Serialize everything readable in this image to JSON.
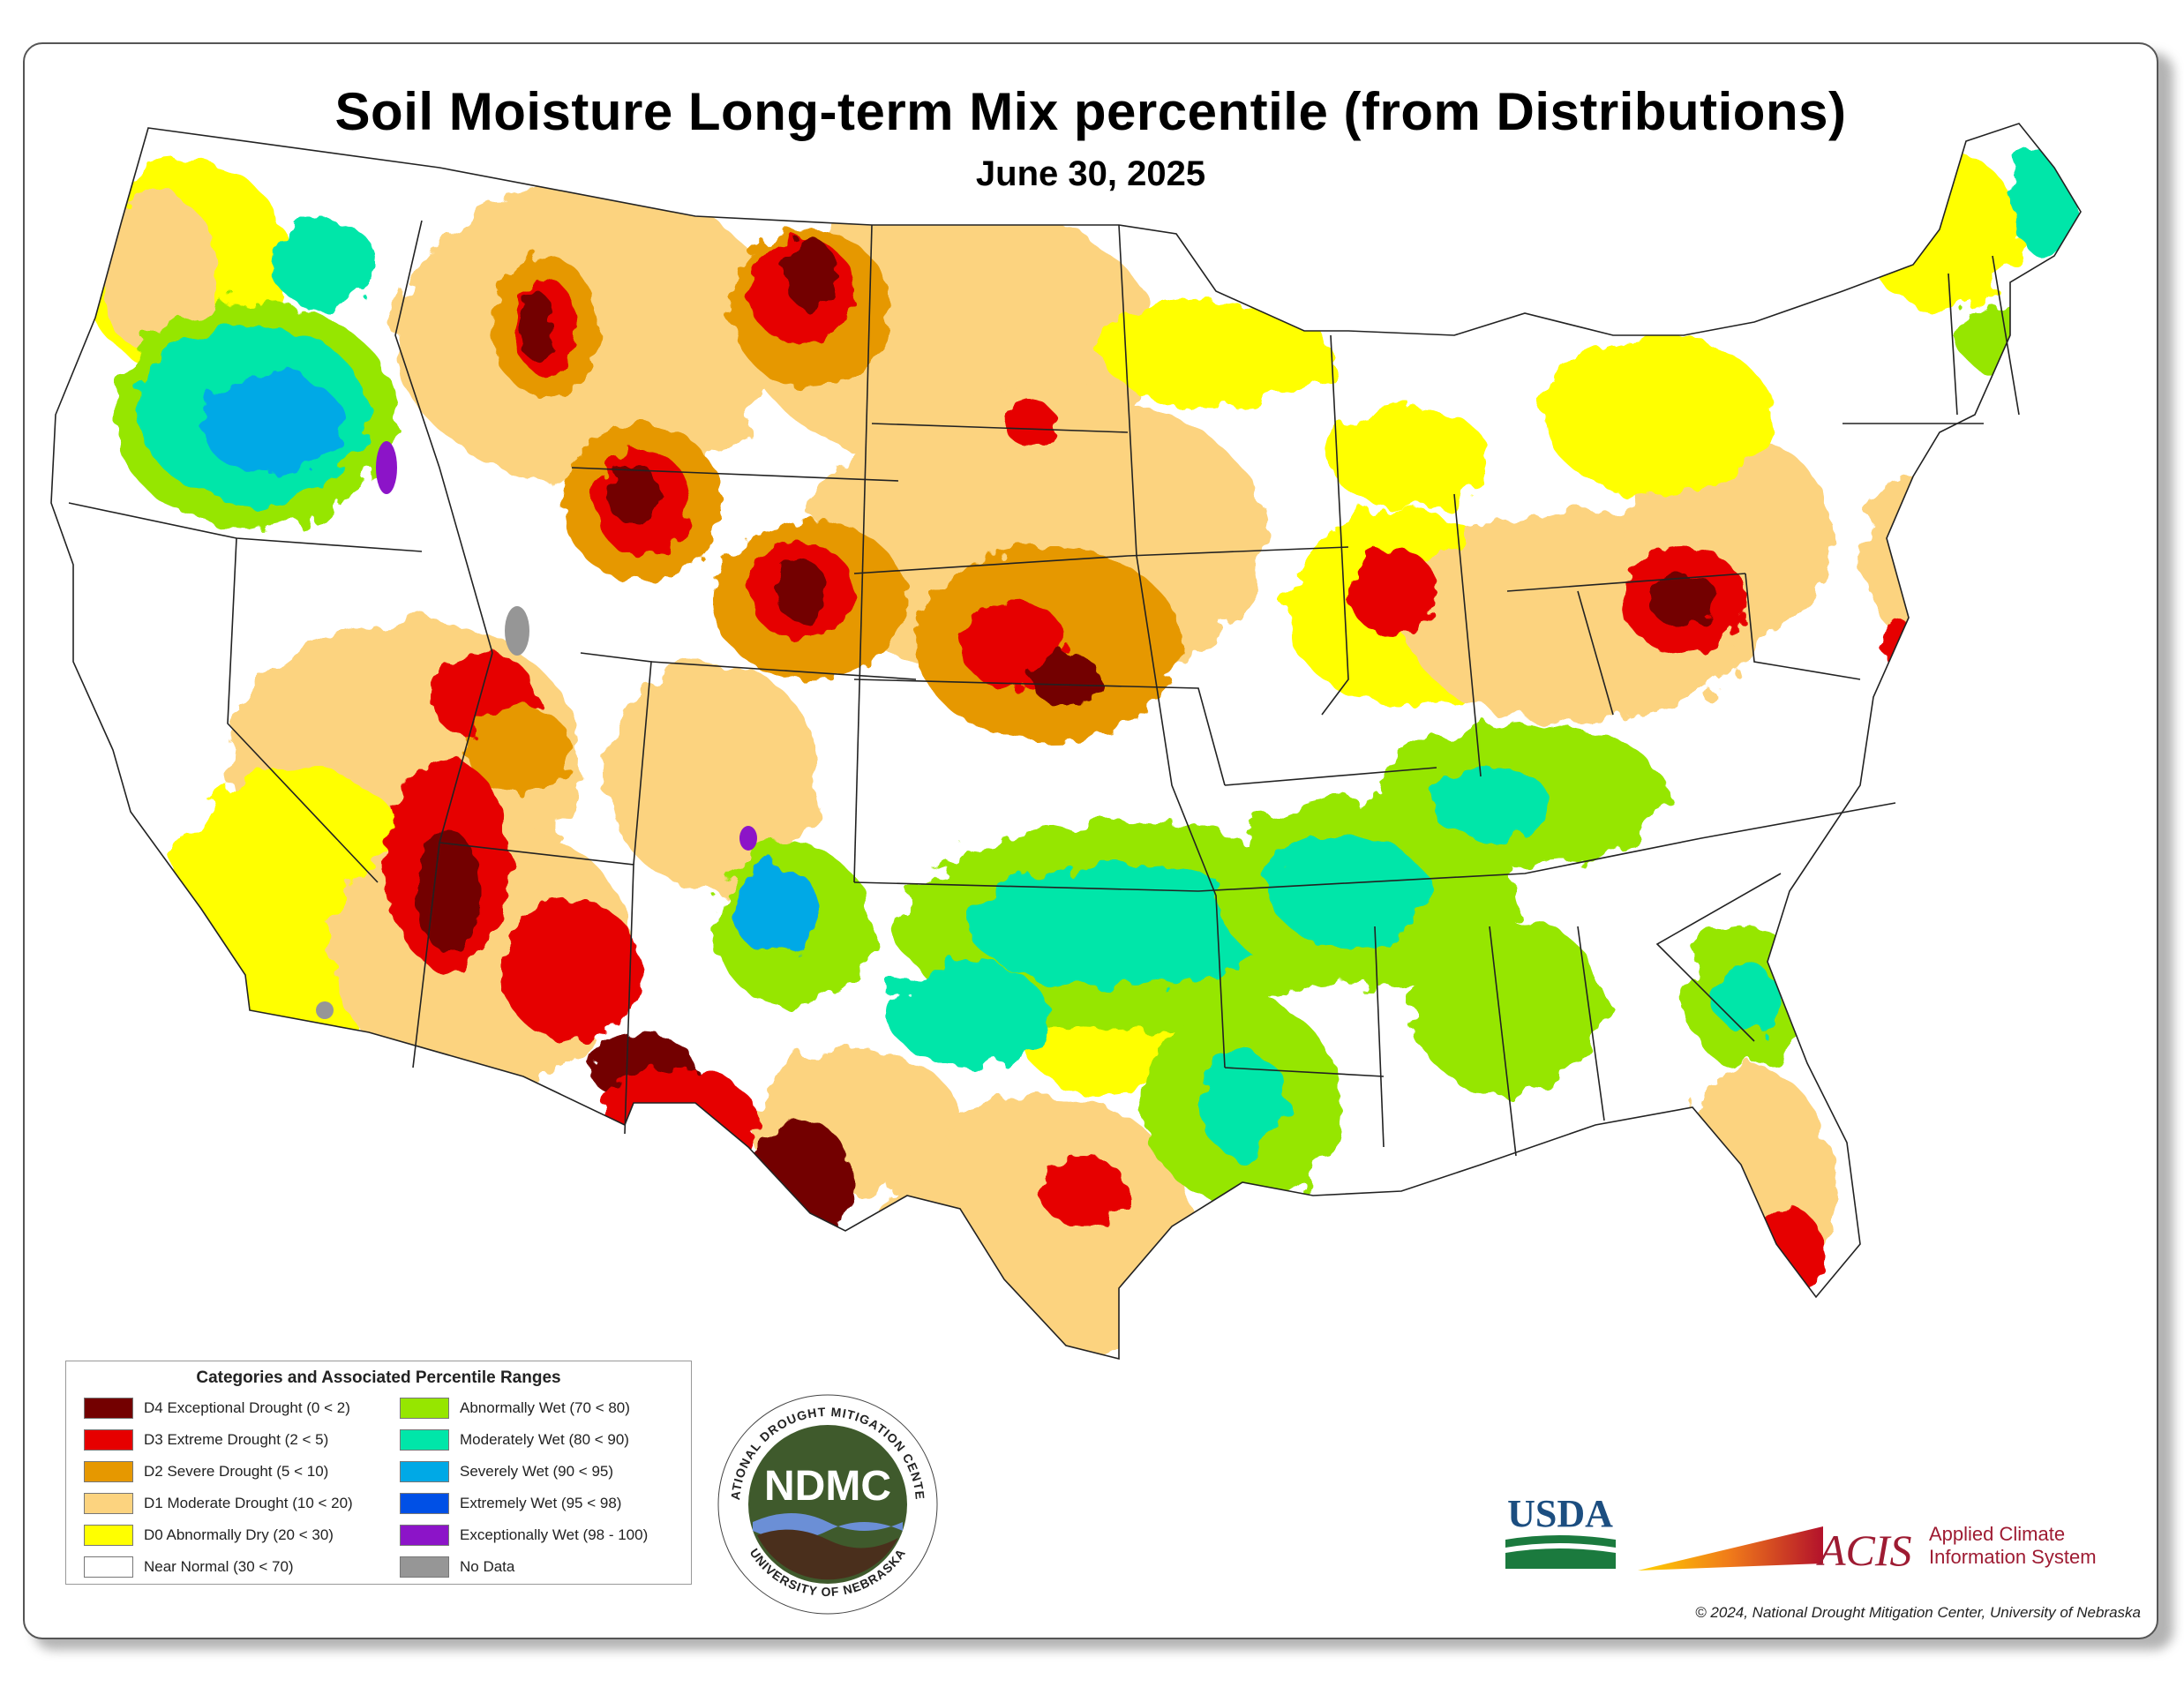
{
  "title": "Soil Moisture Long-term Mix percentile (from Distributions)",
  "date": "June 30, 2025",
  "legend": {
    "title": "Categories and Associated Percentile Ranges",
    "items": [
      {
        "label": "D4 Exceptional Drought (0 < 2)",
        "color": "#730000"
      },
      {
        "label": "D3 Extreme Drought (2 < 5)",
        "color": "#e60000"
      },
      {
        "label": "D2 Severe Drought (5 < 10)",
        "color": "#e69800"
      },
      {
        "label": "D1 Moderate Drought (10 < 20)",
        "color": "#fcd37f"
      },
      {
        "label": "D0 Abnormally Dry (20 < 30)",
        "color": "#ffff00"
      },
      {
        "label": "Near Normal (30 < 70)",
        "color": "#ffffff"
      },
      {
        "label": "Abnormally Wet (70 < 80)",
        "color": "#96e600"
      },
      {
        "label": "Moderately Wet (80 < 90)",
        "color": "#00e6a9"
      },
      {
        "label": "Severely Wet (90 < 95)",
        "color": "#00a9e6"
      },
      {
        "label": "Extremely Wet (95 < 98)",
        "color": "#0050e6"
      },
      {
        "label": "Exceptionally Wet (98 - 100)",
        "color": "#8c14c8"
      },
      {
        "label": "No Data",
        "color": "#969696"
      }
    ]
  },
  "logos": {
    "ndmc_text": "NDMC",
    "ndmc_ring_top": "NATIONAL DROUGHT MITIGATION CENTER",
    "ndmc_ring_bottom": "UNIVERSITY OF NEBRASKA",
    "usda_text": "USDA",
    "acis_text": "ACIS",
    "acis_line1": "Applied Climate",
    "acis_line2": "Information System"
  },
  "copyright": "© 2024, National Drought Mitigation Center, University of Nebraska"
}
